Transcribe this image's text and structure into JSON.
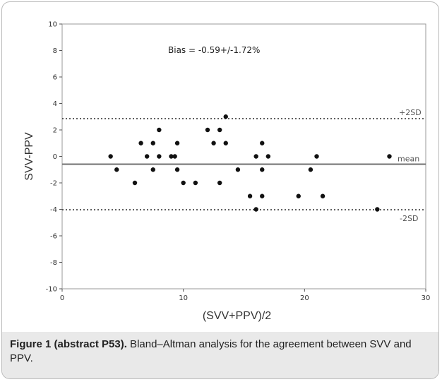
{
  "chart_data": {
    "type": "scatter",
    "xlabel": "(SVV+PPV)/2",
    "ylabel": "SVV-PPV",
    "xlim": [
      0,
      30
    ],
    "ylim": [
      -10,
      10
    ],
    "x_ticks": [
      "0",
      "10",
      "20",
      "30"
    ],
    "y_ticks": [
      "10",
      "8",
      "6",
      "4",
      "2",
      "0",
      "-2",
      "-4",
      "-6",
      "-8",
      "-10"
    ],
    "annotation": "Bias = -0.59+/-1.72%",
    "mean_line": {
      "value": -0.59,
      "label": "mean"
    },
    "upper_line": {
      "value": 2.85,
      "label": "+2SD"
    },
    "lower_line": {
      "value": -4.03,
      "label": "-2SD"
    },
    "points": [
      [
        4,
        0
      ],
      [
        4.5,
        -1
      ],
      [
        6,
        -2
      ],
      [
        6.5,
        1
      ],
      [
        7,
        0
      ],
      [
        7.5,
        1
      ],
      [
        7.5,
        -1
      ],
      [
        8,
        2
      ],
      [
        8,
        0
      ],
      [
        9,
        0
      ],
      [
        9.3,
        0
      ],
      [
        9.5,
        1
      ],
      [
        9.5,
        -1
      ],
      [
        10,
        -2
      ],
      [
        11,
        -2
      ],
      [
        12,
        2
      ],
      [
        12.5,
        1
      ],
      [
        13,
        2
      ],
      [
        13,
        -2
      ],
      [
        13.5,
        3
      ],
      [
        13.5,
        1
      ],
      [
        14.5,
        -1
      ],
      [
        15.5,
        -3
      ],
      [
        16,
        0
      ],
      [
        16,
        -4
      ],
      [
        16.5,
        1
      ],
      [
        16.5,
        -1
      ],
      [
        16.5,
        -3
      ],
      [
        17,
        0
      ],
      [
        19.5,
        -3
      ],
      [
        20.5,
        -1
      ],
      [
        21,
        0
      ],
      [
        21.5,
        -3
      ],
      [
        26,
        -4
      ],
      [
        27,
        0
      ]
    ],
    "grid": false
  },
  "caption": {
    "label": "Figure 1 (abstract P53).",
    "text": " Bland–Altman analysis for the agreement between SVV and PPV."
  },
  "colors": {
    "points": "#111111",
    "mean_line": "#777777",
    "sd_lines": "#333333",
    "axes": "#555555",
    "caption_band": "#e9e9e9"
  }
}
